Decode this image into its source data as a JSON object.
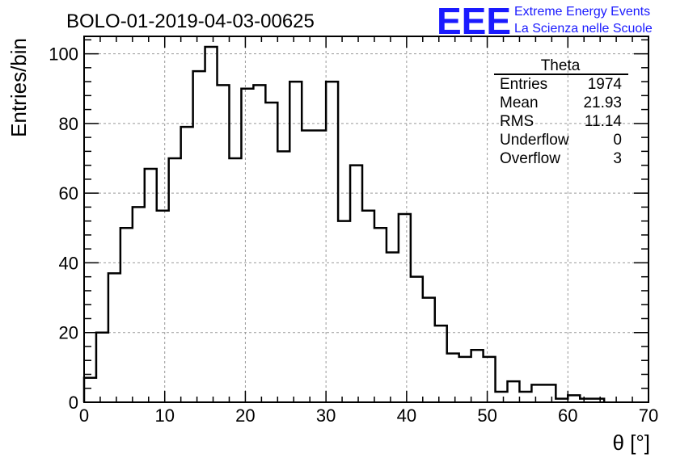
{
  "title": "BOLO-01-2019-04-03-00625",
  "logo": {
    "acronym": "EEE",
    "line1": "Extreme Energy Events",
    "line2": "La Scienza nelle Scuole",
    "color": "#1a1aff"
  },
  "stats": {
    "name": "Theta",
    "rows": [
      {
        "label": "Entries",
        "value": "1974"
      },
      {
        "label": "Mean",
        "value": "21.93"
      },
      {
        "label": "RMS",
        "value": "11.14"
      },
      {
        "label": "Underflow",
        "value": "0"
      },
      {
        "label": "Overflow",
        "value": "3"
      }
    ]
  },
  "chart_data": {
    "type": "histogram",
    "xlabel": "θ [°]",
    "ylabel": "Entries/bin",
    "xlim": [
      0,
      70
    ],
    "ylim": [
      0,
      105
    ],
    "bin_width": 1.5,
    "bin_start": 0,
    "values": [
      7,
      20,
      37,
      50,
      56,
      67,
      55,
      70,
      79,
      95,
      102,
      91,
      70,
      90,
      91,
      86,
      72,
      92,
      78,
      78,
      92,
      52,
      68,
      55,
      50,
      43,
      54,
      36,
      30,
      22,
      14,
      13,
      15,
      13,
      3,
      6,
      3,
      5,
      5,
      1,
      2,
      1,
      1
    ],
    "xticks": [
      0,
      10,
      20,
      30,
      40,
      50,
      60,
      70
    ],
    "yticks": [
      0,
      20,
      40,
      60,
      80,
      100
    ],
    "grid": true,
    "line_color": "#000000"
  }
}
